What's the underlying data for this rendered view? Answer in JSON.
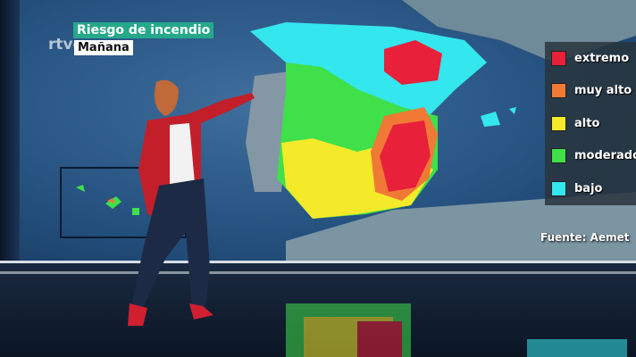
{
  "broadcaster_logo": "rtve",
  "title": "Riesgo de incendio",
  "subtitle": "Mañana",
  "legend": [
    {
      "label": "extremo",
      "color": "#e8203a"
    },
    {
      "label": "muy alto",
      "color": "#f07a35"
    },
    {
      "label": "alto",
      "color": "#f4ea2a"
    },
    {
      "label": "moderado",
      "color": "#3fe04a"
    },
    {
      "label": "bajo",
      "color": "#34e6ee"
    }
  ],
  "source": "Fuente: Aemet"
}
